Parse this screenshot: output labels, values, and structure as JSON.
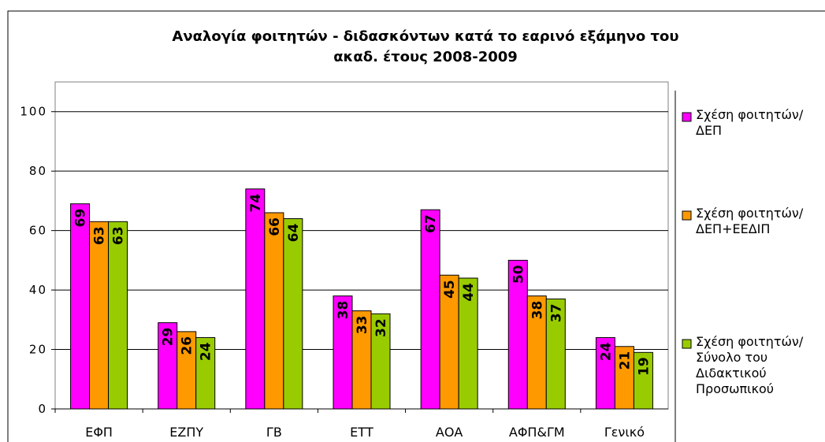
{
  "chart_data": {
    "type": "bar",
    "title": [
      "Αναλογία φοιτητών - διδασκόντων κατά το εαρινό εξάμηνο του",
      "ακαδ. έτους 2008-2009"
    ],
    "categories": [
      "ΕΦΠ",
      "ΕΖΠΥ",
      "ΓΒ",
      "ΕΤΤ",
      "ΑΟΑ",
      "ΑΦΠ&ΓΜ",
      "Γενικό"
    ],
    "series": [
      {
        "name": "Σχέση φοιτητών/ ΔΕΠ",
        "color": "#ff00ff",
        "values": [
          69,
          29,
          74,
          38,
          67,
          50,
          24
        ]
      },
      {
        "name": "Σχέση φοιτητών/ ΔΕΠ+ΕΕΔΙΠ",
        "color": "#ff9900",
        "values": [
          63,
          26,
          66,
          33,
          45,
          38,
          21
        ]
      },
      {
        "name": "Σχέση φοιτητών/ Σύνολο του Διδακτικού Προσωπικού",
        "color": "#99cc00",
        "values": [
          63,
          24,
          64,
          32,
          44,
          37,
          19
        ]
      }
    ],
    "ylim": [
      0,
      110
    ],
    "yticks": [
      0,
      20,
      40,
      60,
      80,
      100
    ],
    "grid": true,
    "legend": "right"
  }
}
